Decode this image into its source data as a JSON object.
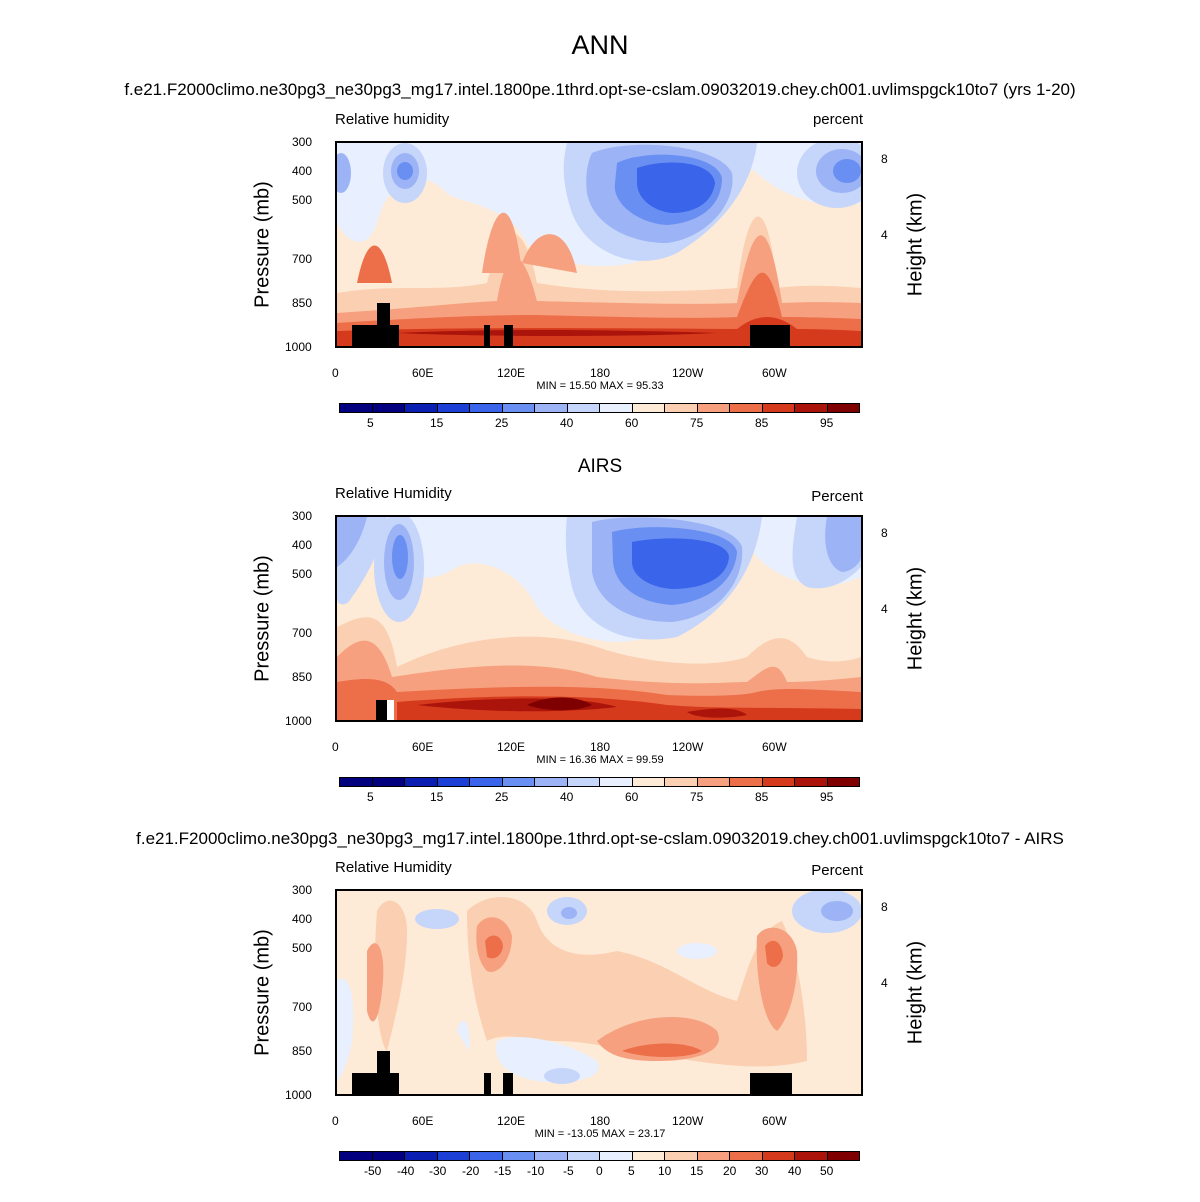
{
  "main_title": "ANN",
  "colors": {
    "rh_scale": [
      "#02007f",
      "#0a1fb2",
      "#1c3fd6",
      "#3a64ea",
      "#6a8ff2",
      "#9cb4f6",
      "#c6d5fa",
      "#e8efff",
      "#fdebd8",
      "#fbcfb1",
      "#f6a07f",
      "#ec6f4a",
      "#d63a1c",
      "#aa140b",
      "#7f0000"
    ],
    "diff_scale": [
      "#02007f",
      "#0a1fb2",
      "#1c3fd6",
      "#3a64ea",
      "#6a8ff2",
      "#9cb4f6",
      "#c6d5fa",
      "#e8efff",
      "#fdebd8",
      "#fbcfb1",
      "#f6a07f",
      "#ec6f4a",
      "#d63a1c",
      "#aa140b",
      "#7f0000"
    ]
  },
  "panels": [
    {
      "title": "f.e21.F2000climo.ne30pg3_ne30pg3_mg17.intel.1800pe.1thrd.opt-se-cslam.09032019.chey.ch001.uvlimspgck10to7 (yrs 1-20)",
      "left_label": "Relative humidity",
      "right_label": "percent",
      "minmax": "MIN =  15.50  MAX =  95.33",
      "colorbar_labels": [
        "5",
        "15",
        "25",
        "40",
        "60",
        "75",
        "85",
        "95"
      ]
    },
    {
      "title": "AIRS",
      "left_label": "Relative Humidity",
      "right_label": "Percent",
      "minmax": "MIN =  16.36  MAX =  99.59",
      "colorbar_labels": [
        "5",
        "15",
        "25",
        "40",
        "60",
        "75",
        "85",
        "95"
      ]
    },
    {
      "title": "f.e21.F2000climo.ne30pg3_ne30pg3_mg17.intel.1800pe.1thrd.opt-se-cslam.09032019.chey.ch001.uvlimspgck10to7 - AIRS",
      "left_label": "Relative Humidity",
      "right_label": "Percent",
      "minmax": "MIN = -13.05  MAX =  23.17",
      "colorbar_labels": [
        "-50",
        "-40",
        "-30",
        "-20",
        "-15",
        "-10",
        "-5",
        "0",
        "5",
        "10",
        "15",
        "20",
        "30",
        "40",
        "50"
      ]
    }
  ],
  "chart_data": [
    {
      "type": "heatmap",
      "title": "Relative humidity",
      "xlabel": "",
      "ylabel": "Pressure (mb)",
      "ylabel_right": "Height (km)",
      "x_ticks": [
        "0",
        "60E",
        "120E",
        "180",
        "120W",
        "60W"
      ],
      "y_ticks": [
        "300",
        "400",
        "500",
        "700",
        "850",
        "1000"
      ],
      "y_right_ticks": [
        "8",
        "4"
      ],
      "xlim": [
        0,
        360
      ],
      "ylim": [
        1000,
        300
      ],
      "levels": [
        5,
        15,
        25,
        40,
        60,
        75,
        85,
        95
      ],
      "min": 15.5,
      "max": 95.33,
      "units": "percent",
      "features": [
        {
          "kind": "dry",
          "lon": 235,
          "p": 400,
          "value": 15
        },
        {
          "kind": "dry",
          "lon": 45,
          "p": 400,
          "value": 25
        },
        {
          "kind": "dry",
          "lon": 350,
          "p": 400,
          "value": 25
        },
        {
          "kind": "moist",
          "lon": 180,
          "p": 950,
          "value": 95
        },
        {
          "kind": "moist",
          "lon": 290,
          "p": 800,
          "value": 85
        }
      ]
    },
    {
      "type": "heatmap",
      "title": "Relative Humidity",
      "xlabel": "",
      "ylabel": "Pressure (mb)",
      "ylabel_right": "Height (km)",
      "x_ticks": [
        "0",
        "60E",
        "120E",
        "180",
        "120W",
        "60W"
      ],
      "y_ticks": [
        "300",
        "400",
        "500",
        "700",
        "850",
        "1000"
      ],
      "y_right_ticks": [
        "8",
        "4"
      ],
      "xlim": [
        0,
        360
      ],
      "ylim": [
        1000,
        300
      ],
      "levels": [
        5,
        15,
        25,
        40,
        60,
        75,
        85,
        95
      ],
      "min": 16.36,
      "max": 99.59,
      "units": "Percent",
      "features": [
        {
          "kind": "dry",
          "lon": 235,
          "p": 450,
          "value": 15
        },
        {
          "kind": "dry",
          "lon": 42,
          "p": 450,
          "value": 25
        },
        {
          "kind": "dry",
          "lon": 355,
          "p": 450,
          "value": 40
        },
        {
          "kind": "moist",
          "lon": 150,
          "p": 950,
          "value": 95
        }
      ]
    },
    {
      "type": "heatmap",
      "title": "Relative Humidity",
      "xlabel": "",
      "ylabel": "Pressure (mb)",
      "ylabel_right": "Height (km)",
      "x_ticks": [
        "0",
        "60E",
        "120E",
        "180",
        "120W",
        "60W"
      ],
      "y_ticks": [
        "300",
        "400",
        "500",
        "700",
        "850",
        "1000"
      ],
      "y_right_ticks": [
        "8",
        "4"
      ],
      "xlim": [
        0,
        360
      ],
      "ylim": [
        1000,
        300
      ],
      "levels": [
        -50,
        -40,
        -30,
        -20,
        -15,
        -10,
        -5,
        0,
        5,
        10,
        15,
        20,
        30,
        40,
        50
      ],
      "min": -13.05,
      "max": 23.17,
      "units": "Percent",
      "features": [
        {
          "kind": "positive",
          "lon": 225,
          "p": 850,
          "value": 20
        },
        {
          "kind": "positive",
          "lon": 102,
          "p": 500,
          "value": 20
        },
        {
          "kind": "positive",
          "lon": 292,
          "p": 550,
          "value": 20
        },
        {
          "kind": "negative",
          "lon": 155,
          "p": 920,
          "value": -5
        }
      ]
    }
  ]
}
